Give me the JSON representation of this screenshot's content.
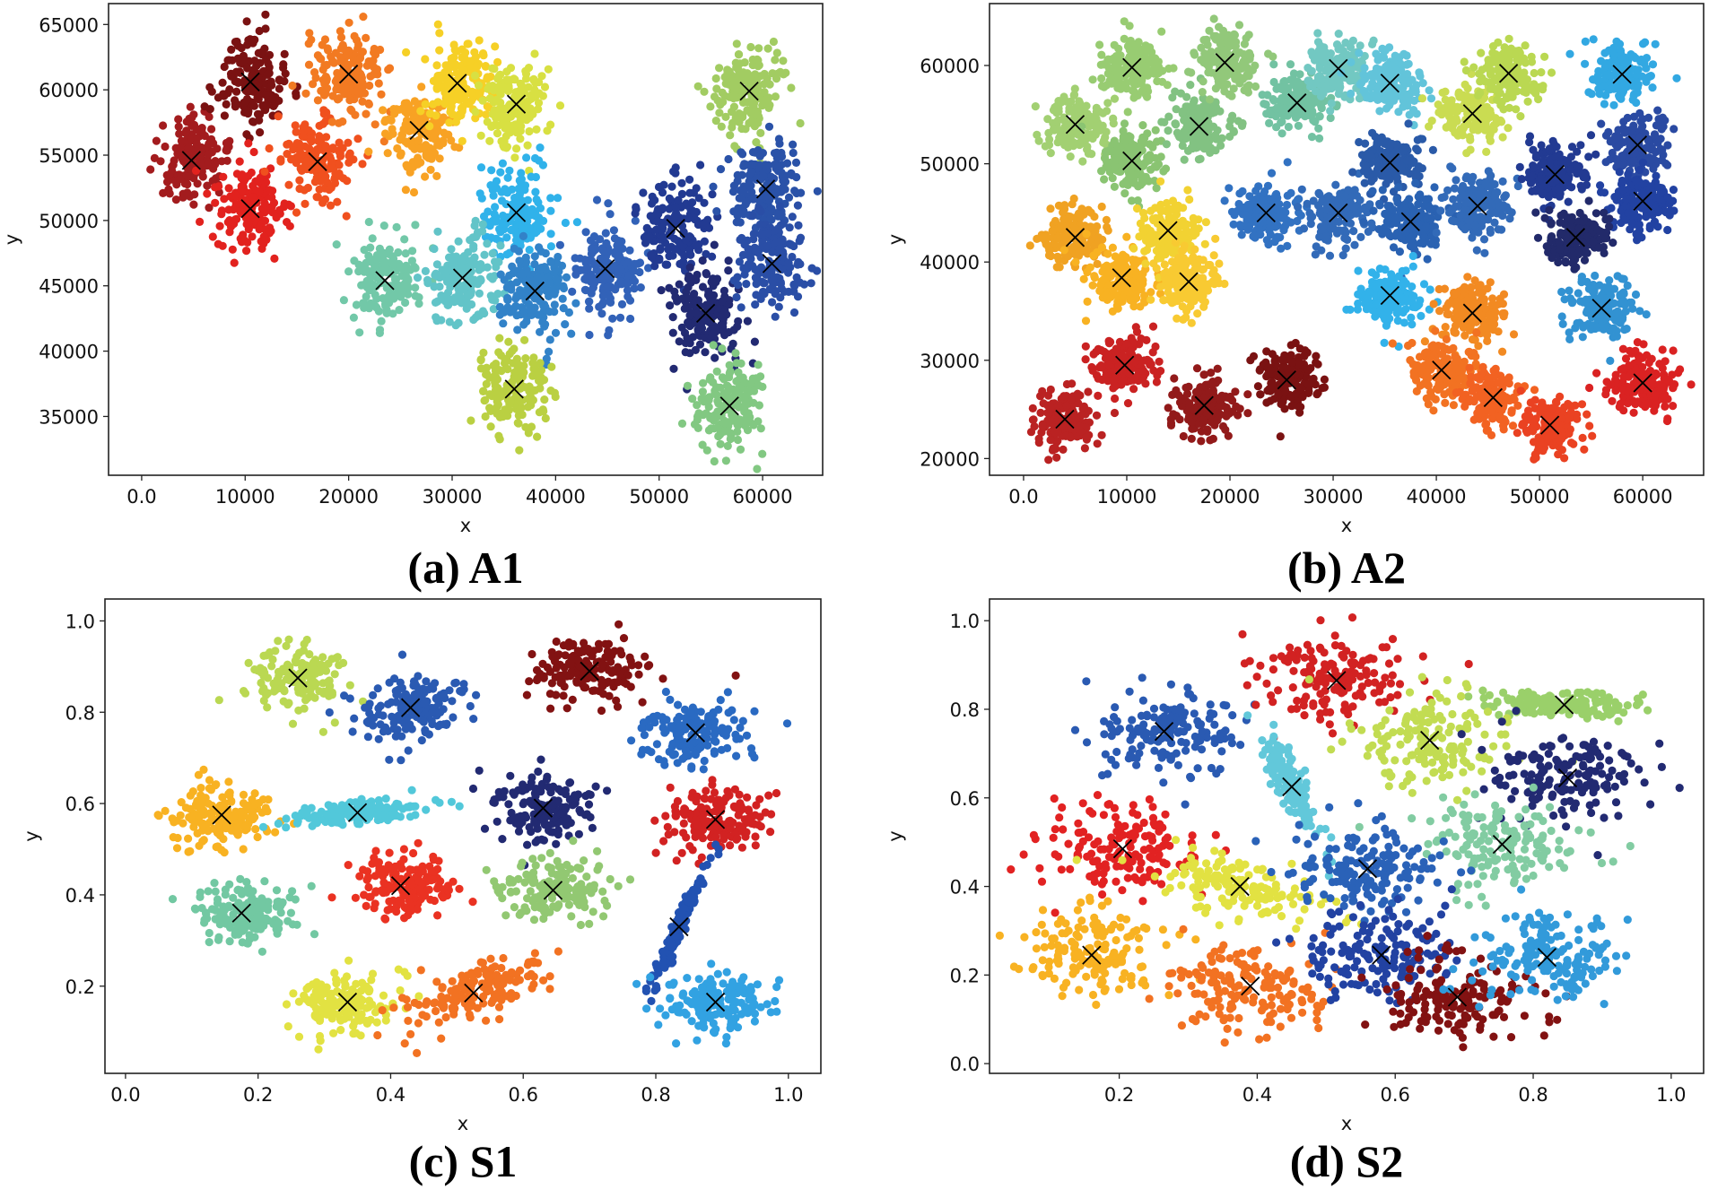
{
  "chart_data": [
    {
      "id": "a",
      "type": "scatter",
      "title": "(a) A1",
      "xlabel": "x",
      "ylabel": "y",
      "xlim": [
        -3200,
        65800
      ],
      "ylim": [
        30500,
        66600
      ],
      "xticks": [
        0,
        10000,
        20000,
        30000,
        40000,
        50000,
        60000
      ],
      "yticks": [
        35000,
        40000,
        45000,
        50000,
        55000,
        60000,
        65000
      ],
      "grid": false,
      "spread": [
        1700,
        1700
      ],
      "centroids": [
        {
          "x": 4800,
          "y": 54600,
          "color": "#a31c1e"
        },
        {
          "x": 10500,
          "y": 60600,
          "color": "#7a1212"
        },
        {
          "x": 10500,
          "y": 50900,
          "color": "#e2221e"
        },
        {
          "x": 17000,
          "y": 54500,
          "color": "#f0501e"
        },
        {
          "x": 20000,
          "y": 61200,
          "color": "#f27a22"
        },
        {
          "x": 26800,
          "y": 56900,
          "color": "#f8a224"
        },
        {
          "x": 30500,
          "y": 60500,
          "color": "#f6d026"
        },
        {
          "x": 36200,
          "y": 58900,
          "color": "#d8e042"
        },
        {
          "x": 58700,
          "y": 59900,
          "color": "#a2cc62"
        },
        {
          "x": 36200,
          "y": 50600,
          "color": "#30b2ea"
        },
        {
          "x": 23500,
          "y": 45400,
          "color": "#72c8a8"
        },
        {
          "x": 31000,
          "y": 45600,
          "color": "#62c4c8"
        },
        {
          "x": 38000,
          "y": 44600,
          "color": "#3282c8"
        },
        {
          "x": 44800,
          "y": 46300,
          "color": "#3262b8"
        },
        {
          "x": 51600,
          "y": 49400,
          "color": "#223a92"
        },
        {
          "x": 54500,
          "y": 42900,
          "color": "#222a72"
        },
        {
          "x": 60300,
          "y": 52400,
          "color": "#2a52a8"
        },
        {
          "x": 60900,
          "y": 46700,
          "color": "#2a4ea6"
        },
        {
          "x": 36000,
          "y": 37100,
          "color": "#bad042"
        },
        {
          "x": 56800,
          "y": 35800,
          "color": "#82c882"
        }
      ]
    },
    {
      "id": "b",
      "type": "scatter",
      "title": "(b) A2",
      "xlabel": "x",
      "ylabel": "y",
      "xlim": [
        -3300,
        65900
      ],
      "ylim": [
        18300,
        66300
      ],
      "xticks": [
        0,
        10000,
        20000,
        30000,
        40000,
        50000,
        60000
      ],
      "yticks": [
        20000,
        30000,
        40000,
        50000,
        60000
      ],
      "grid": false,
      "spread": [
        1500,
        1500
      ],
      "centroids": [
        {
          "x": 5000,
          "y": 54000,
          "color": "#a2d072"
        },
        {
          "x": 10500,
          "y": 59800,
          "color": "#98cc72"
        },
        {
          "x": 10500,
          "y": 50300,
          "color": "#8ac472"
        },
        {
          "x": 17000,
          "y": 53800,
          "color": "#82c282"
        },
        {
          "x": 19500,
          "y": 60300,
          "color": "#92c87a"
        },
        {
          "x": 26500,
          "y": 56200,
          "color": "#72c2a2"
        },
        {
          "x": 30500,
          "y": 59700,
          "color": "#72c8c2"
        },
        {
          "x": 35500,
          "y": 58200,
          "color": "#62c4da"
        },
        {
          "x": 43500,
          "y": 55100,
          "color": "#cadc52"
        },
        {
          "x": 47000,
          "y": 59200,
          "color": "#bad852"
        },
        {
          "x": 58000,
          "y": 59100,
          "color": "#32a8e2"
        },
        {
          "x": 23500,
          "y": 45000,
          "color": "#3272c2"
        },
        {
          "x": 30500,
          "y": 45000,
          "color": "#326ab8"
        },
        {
          "x": 35500,
          "y": 50100,
          "color": "#2a5aa8"
        },
        {
          "x": 37500,
          "y": 44100,
          "color": "#2a62b2"
        },
        {
          "x": 44000,
          "y": 45700,
          "color": "#326ab8"
        },
        {
          "x": 51500,
          "y": 48900,
          "color": "#223a92"
        },
        {
          "x": 59500,
          "y": 51900,
          "color": "#2a4aa2"
        },
        {
          "x": 60000,
          "y": 46200,
          "color": "#2242a2"
        },
        {
          "x": 53500,
          "y": 42500,
          "color": "#222a6a"
        },
        {
          "x": 5000,
          "y": 42500,
          "color": "#f0a222"
        },
        {
          "x": 9500,
          "y": 38400,
          "color": "#f8b222"
        },
        {
          "x": 14000,
          "y": 43200,
          "color": "#f2d232"
        },
        {
          "x": 16000,
          "y": 38000,
          "color": "#f8ca32"
        },
        {
          "x": 35500,
          "y": 36600,
          "color": "#32b2ea"
        },
        {
          "x": 43500,
          "y": 34800,
          "color": "#f28a22"
        },
        {
          "x": 56000,
          "y": 35300,
          "color": "#3292d2"
        },
        {
          "x": 4000,
          "y": 24000,
          "color": "#ba2222"
        },
        {
          "x": 9800,
          "y": 29500,
          "color": "#ca2222"
        },
        {
          "x": 17500,
          "y": 25400,
          "color": "#921a1a"
        },
        {
          "x": 25500,
          "y": 28000,
          "color": "#7a1212"
        },
        {
          "x": 40500,
          "y": 29000,
          "color": "#f27222"
        },
        {
          "x": 45500,
          "y": 26200,
          "color": "#f26222"
        },
        {
          "x": 51000,
          "y": 23400,
          "color": "#ea4222"
        },
        {
          "x": 60000,
          "y": 27700,
          "color": "#da2222"
        }
      ]
    },
    {
      "id": "c",
      "type": "scatter",
      "title": "(c) S1",
      "xlabel": "x",
      "ylabel": "y",
      "xlim": [
        -0.031,
        1.049
      ],
      "ylim": [
        0.009,
        1.048
      ],
      "xticks": [
        0.0,
        0.2,
        0.4,
        0.6,
        0.8,
        1.0
      ],
      "yticks": [
        0.2,
        0.4,
        0.6,
        0.8,
        1.0
      ],
      "grid": false,
      "spread": [
        0.04,
        0.035
      ],
      "centroids": [
        {
          "x": 0.26,
          "y": 0.875,
          "color": "#bad852"
        },
        {
          "x": 0.43,
          "y": 0.81,
          "color": "#2a5ab2"
        },
        {
          "x": 0.7,
          "y": 0.89,
          "color": "#821212"
        },
        {
          "x": 0.86,
          "y": 0.755,
          "color": "#2a6ac2"
        },
        {
          "x": 0.145,
          "y": 0.575,
          "color": "#f8b222"
        },
        {
          "x": 0.35,
          "y": 0.58,
          "color": "#52c8da",
          "sx": 0.05,
          "sy": 0.015,
          "rho": 0.5
        },
        {
          "x": 0.63,
          "y": 0.59,
          "color": "#222a72"
        },
        {
          "x": 0.89,
          "y": 0.565,
          "color": "#d22222"
        },
        {
          "x": 0.175,
          "y": 0.36,
          "color": "#72c8a2"
        },
        {
          "x": 0.415,
          "y": 0.42,
          "color": "#ea3222"
        },
        {
          "x": 0.645,
          "y": 0.41,
          "color": "#92c872"
        },
        {
          "x": 0.835,
          "y": 0.33,
          "color": "#2252b2",
          "sx": 0.02,
          "sy": 0.065,
          "rho": 0.97
        },
        {
          "x": 0.335,
          "y": 0.165,
          "color": "#e2e242"
        },
        {
          "x": 0.525,
          "y": 0.185,
          "color": "#f27222",
          "sx": 0.05,
          "sy": 0.035,
          "rho": 0.6
        },
        {
          "x": 0.89,
          "y": 0.165,
          "color": "#32a2e2"
        }
      ]
    },
    {
      "id": "d",
      "type": "scatter",
      "title": "(d) S2",
      "xlabel": "x",
      "ylabel": "y",
      "xlim": [
        0.012,
        1.047
      ],
      "ylim": [
        -0.022,
        1.049
      ],
      "xticks": [
        0.2,
        0.4,
        0.6,
        0.8,
        1.0
      ],
      "yticks": [
        0.0,
        0.2,
        0.4,
        0.6,
        0.8,
        1.0
      ],
      "grid": false,
      "spread": [
        0.055,
        0.05
      ],
      "centroids": [
        {
          "x": 0.265,
          "y": 0.75,
          "color": "#2a5ab2"
        },
        {
          "x": 0.515,
          "y": 0.865,
          "color": "#d22222"
        },
        {
          "x": 0.845,
          "y": 0.81,
          "color": "#9ad06a",
          "sx": 0.06,
          "sy": 0.015,
          "rho": -0.3
        },
        {
          "x": 0.65,
          "y": 0.73,
          "color": "#c2dc52"
        },
        {
          "x": 0.85,
          "y": 0.645,
          "color": "#222a72"
        },
        {
          "x": 0.45,
          "y": 0.625,
          "color": "#62c8da",
          "sx": 0.02,
          "sy": 0.06,
          "rho": -0.85
        },
        {
          "x": 0.205,
          "y": 0.485,
          "color": "#e22222"
        },
        {
          "x": 0.755,
          "y": 0.495,
          "color": "#82cca2"
        },
        {
          "x": 0.375,
          "y": 0.4,
          "color": "#e2e242",
          "sx": 0.06,
          "sy": 0.035,
          "rho": -0.5
        },
        {
          "x": 0.56,
          "y": 0.44,
          "color": "#2a62b8"
        },
        {
          "x": 0.16,
          "y": 0.245,
          "color": "#f8b222"
        },
        {
          "x": 0.39,
          "y": 0.175,
          "color": "#f27222"
        },
        {
          "x": 0.58,
          "y": 0.245,
          "color": "#2242a2"
        },
        {
          "x": 0.69,
          "y": 0.15,
          "color": "#821212"
        },
        {
          "x": 0.82,
          "y": 0.24,
          "color": "#329ada"
        }
      ]
    }
  ]
}
